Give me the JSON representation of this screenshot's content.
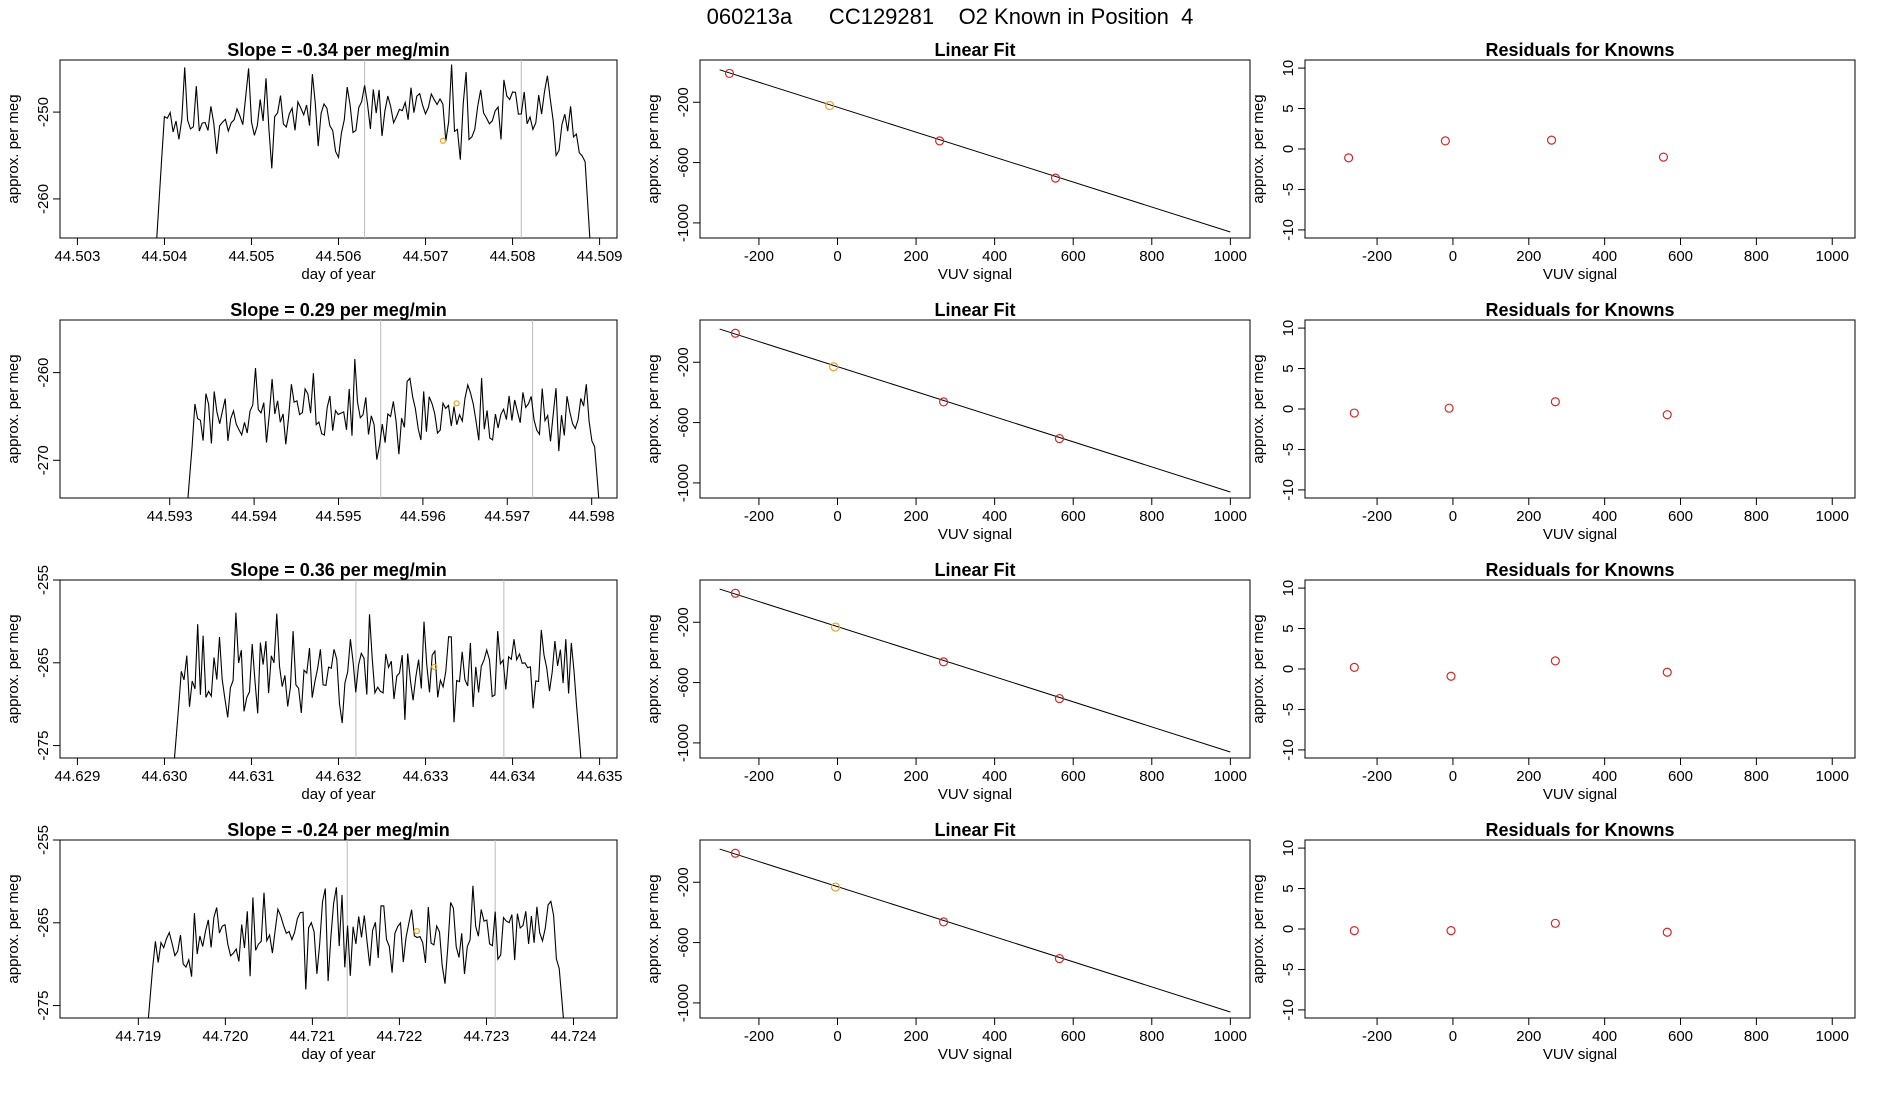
{
  "title": "060213a      CC129281    O2 Known in Position  4",
  "colors": {
    "trace": "#000000",
    "known_point": "#d62728",
    "current_point": "#f0a020",
    "vline": "#bbbbbb"
  },
  "chart_data": [
    {
      "row": 1,
      "panel": "timeseries",
      "type": "line",
      "title": "Slope =  -0.34  per meg/min",
      "xlabel": "day of year",
      "ylabel": "approx. per meg",
      "xlim": [
        44.5028,
        44.5092
      ],
      "ylim": [
        -264.5,
        -244
      ],
      "xticks": [
        "44.503",
        "44.504",
        "44.505",
        "44.506",
        "44.507",
        "44.508",
        "44.509"
      ],
      "yticks": [
        "-250",
        "-260"
      ],
      "data_start": 44.5039,
      "data_end": 44.5089,
      "vlines": [
        44.5063,
        44.5081
      ],
      "trace_level": -250.3,
      "trace_noise": 2.3,
      "seed": 11,
      "marker": {
        "x": 44.5072,
        "y": -253.3
      }
    },
    {
      "row": 1,
      "panel": "fit",
      "type": "line",
      "title": "Linear Fit",
      "xlabel": "VUV signal",
      "ylabel": "approx. per meg",
      "xlim": [
        -350,
        1050
      ],
      "ylim": [
        -1100,
        80
      ],
      "xticks": [
        "-200",
        "0",
        "200",
        "400",
        "600",
        "800",
        "1000"
      ],
      "yticks": [
        "-200",
        "-600",
        "-1000"
      ],
      "line": [
        [
          -300,
          15
        ],
        [
          1000,
          -1060
        ]
      ],
      "points": [
        [
          -275,
          -9
        ],
        [
          -20,
          -222
        ],
        [
          260,
          -456
        ],
        [
          555,
          -703
        ]
      ],
      "current_index": 1
    },
    {
      "row": 1,
      "panel": "residuals",
      "type": "scatter",
      "title": "Residuals for Knowns",
      "xlabel": "VUV signal",
      "ylabel": "approx. per meg",
      "xlim": [
        -390,
        1060
      ],
      "ylim": [
        -11,
        11
      ],
      "xticks": [
        "-200",
        "0",
        "200",
        "400",
        "600",
        "800",
        "1000"
      ],
      "yticks": [
        "10",
        "5",
        "0",
        "-5",
        "-10"
      ],
      "points": [
        [
          -275,
          -1.1
        ],
        [
          -20,
          1.0
        ],
        [
          260,
          1.1
        ],
        [
          555,
          -1.0
        ]
      ]
    },
    {
      "row": 2,
      "panel": "timeseries",
      "type": "line",
      "title": "Slope =  0.29  per meg/min",
      "xlabel": "",
      "ylabel": "approx. per meg",
      "xlim": [
        44.5917,
        44.5983
      ],
      "ylim": [
        -274.3,
        -254
      ],
      "xticks": [
        "44.593",
        "44.594",
        "44.595",
        "44.596",
        "44.597",
        "44.598"
      ],
      "yticks": [
        "-260",
        "-270"
      ],
      "data_start": 44.5932,
      "data_end": 44.5981,
      "vlines": [
        44.5955,
        44.5973
      ],
      "trace_level": -264.5,
      "trace_noise": 2.0,
      "seed": 23,
      "marker": {
        "x": 44.5964,
        "y": -263.5
      }
    },
    {
      "row": 2,
      "panel": "fit",
      "type": "line",
      "title": "Linear Fit",
      "xlabel": "VUV signal",
      "ylabel": "approx. per meg",
      "xlim": [
        -350,
        1050
      ],
      "ylim": [
        -1100,
        80
      ],
      "xticks": [
        "-200",
        "0",
        "200",
        "400",
        "600",
        "800",
        "1000"
      ],
      "yticks": [
        "-200",
        "-600",
        "-1000"
      ],
      "line": [
        [
          -300,
          20
        ],
        [
          1000,
          -1060
        ]
      ],
      "points": [
        [
          -260,
          -8
        ],
        [
          -10,
          -230
        ],
        [
          270,
          -463
        ],
        [
          565,
          -706
        ]
      ],
      "current_index": 1
    },
    {
      "row": 2,
      "panel": "residuals",
      "type": "scatter",
      "title": "Residuals for Knowns",
      "xlabel": "VUV signal",
      "ylabel": "approx. per meg",
      "xlim": [
        -390,
        1060
      ],
      "ylim": [
        -11,
        11
      ],
      "xticks": [
        "-200",
        "0",
        "200",
        "400",
        "600",
        "800",
        "1000"
      ],
      "yticks": [
        "10",
        "5",
        "0",
        "-5",
        "-10"
      ],
      "points": [
        [
          -260,
          -0.5
        ],
        [
          -10,
          0.1
        ],
        [
          270,
          0.9
        ],
        [
          565,
          -0.7
        ]
      ]
    },
    {
      "row": 3,
      "panel": "timeseries",
      "type": "line",
      "title": "Slope =  0.36  per meg/min",
      "xlabel": "day of year",
      "ylabel": "approx. per meg",
      "xlim": [
        44.6288,
        44.6352
      ],
      "ylim": [
        -276.5,
        -255
      ],
      "xticks": [
        "44.629",
        "44.630",
        "44.631",
        "44.632",
        "44.633",
        "44.634",
        "44.635"
      ],
      "yticks": [
        "-255",
        "-265",
        "-275"
      ],
      "data_start": 44.6301,
      "data_end": 44.6348,
      "vlines": [
        44.6322,
        44.6339
      ],
      "trace_level": -266.3,
      "trace_noise": 2.8,
      "seed": 37,
      "marker": {
        "x": 44.6331,
        "y": -265.5
      }
    },
    {
      "row": 3,
      "panel": "fit",
      "type": "line",
      "title": "Linear Fit",
      "xlabel": "VUV signal",
      "ylabel": "approx. per meg",
      "xlim": [
        -350,
        1050
      ],
      "ylim": [
        -1100,
        80
      ],
      "xticks": [
        "-200",
        "0",
        "200",
        "400",
        "600",
        "800",
        "1000"
      ],
      "yticks": [
        "-200",
        "-600",
        "-1000"
      ],
      "line": [
        [
          -300,
          20
        ],
        [
          1000,
          -1060
        ]
      ],
      "points": [
        [
          -260,
          -8
        ],
        [
          -5,
          -232
        ],
        [
          270,
          -463
        ],
        [
          565,
          -706
        ]
      ],
      "current_index": 1
    },
    {
      "row": 3,
      "panel": "residuals",
      "type": "scatter",
      "title": "Residuals for Knowns",
      "xlabel": "VUV signal",
      "ylabel": "approx. per meg",
      "xlim": [
        -390,
        1060
      ],
      "ylim": [
        -11,
        11
      ],
      "xticks": [
        "-200",
        "0",
        "200",
        "400",
        "600",
        "800",
        "1000"
      ],
      "yticks": [
        "10",
        "5",
        "0",
        "-5",
        "-10"
      ],
      "points": [
        [
          -260,
          0.2
        ],
        [
          -5,
          -0.9
        ],
        [
          270,
          1.0
        ],
        [
          565,
          -0.4
        ]
      ]
    },
    {
      "row": 4,
      "panel": "timeseries",
      "type": "line",
      "title": "Slope =  -0.24  per meg/min",
      "xlabel": "day of year",
      "ylabel": "approx. per meg",
      "xlim": [
        44.7181,
        44.7245
      ],
      "ylim": [
        -276.5,
        -255
      ],
      "xticks": [
        "44.719",
        "44.720",
        "44.721",
        "44.722",
        "44.723",
        "44.724"
      ],
      "yticks": [
        "-255",
        "-265",
        "-275"
      ],
      "data_start": 44.7191,
      "data_end": 44.7239,
      "vlines": [
        44.7214,
        44.7231
      ],
      "trace_level": -266.5,
      "trace_noise": 2.5,
      "seed": 53,
      "marker": {
        "x": 44.7222,
        "y": -266.0
      }
    },
    {
      "row": 4,
      "panel": "fit",
      "type": "line",
      "title": "Linear Fit",
      "xlabel": "VUV signal",
      "ylabel": "approx. per meg",
      "xlim": [
        -350,
        1050
      ],
      "ylim": [
        -1100,
        80
      ],
      "xticks": [
        "-200",
        "0",
        "200",
        "400",
        "600",
        "800",
        "1000"
      ],
      "yticks": [
        "-200",
        "-600",
        "-1000"
      ],
      "line": [
        [
          -300,
          20
        ],
        [
          1000,
          -1060
        ]
      ],
      "points": [
        [
          -260,
          -8
        ],
        [
          -5,
          -232
        ],
        [
          270,
          -463
        ],
        [
          565,
          -706
        ]
      ],
      "current_index": 1
    },
    {
      "row": 4,
      "panel": "residuals",
      "type": "scatter",
      "title": "Residuals for Knowns",
      "xlabel": "VUV signal",
      "ylabel": "approx. per meg",
      "xlim": [
        -390,
        1060
      ],
      "ylim": [
        -11,
        11
      ],
      "xticks": [
        "-200",
        "0",
        "200",
        "400",
        "600",
        "800",
        "1000"
      ],
      "yticks": [
        "10",
        "5",
        "0",
        "-5",
        "-10"
      ],
      "points": [
        [
          -260,
          -0.2
        ],
        [
          -5,
          -0.2
        ],
        [
          270,
          0.7
        ],
        [
          565,
          -0.4
        ]
      ]
    }
  ]
}
